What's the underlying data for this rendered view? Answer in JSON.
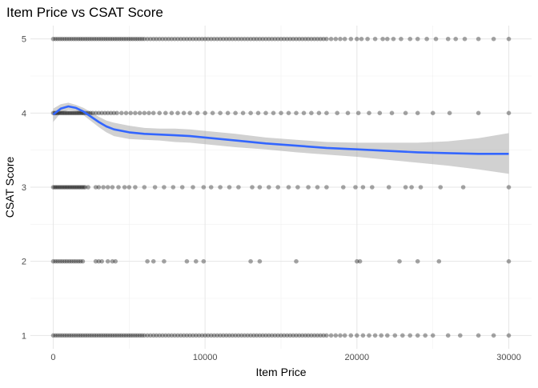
{
  "chart_data": {
    "type": "scatter",
    "title": "Item Price vs CSAT Score",
    "xlabel": "Item Price",
    "ylabel": "CSAT Score",
    "xlim": [
      -1500,
      31500
    ],
    "ylim": [
      0.82,
      5.18
    ],
    "x_ticks": [
      0,
      10000,
      20000,
      30000
    ],
    "y_ticks": [
      1,
      2,
      3,
      4,
      5
    ],
    "grid": true,
    "legend": "none",
    "point_color": "#000000",
    "point_alpha": 0.35,
    "smooth_color": "#3366FF",
    "band_color": "#999999",
    "points": [
      {
        "y": 5,
        "x": [
          0,
          150,
          300,
          450,
          600,
          750,
          900,
          1050,
          1200,
          1350,
          1500,
          1650,
          1800,
          1950,
          2100,
          2250,
          2400,
          2550,
          2700,
          2850,
          3000,
          3150,
          3300,
          3450,
          3600,
          3750,
          3900,
          4050,
          4200,
          4350,
          4500,
          4650,
          4800,
          4950,
          5100,
          5250,
          5400,
          5550,
          5700,
          5850,
          6000,
          6200,
          6400,
          6600,
          6800,
          7000,
          7200,
          7400,
          7600,
          7800,
          8000,
          8200,
          8400,
          8600,
          8800,
          9000,
          9200,
          9400,
          9600,
          9800,
          10000,
          10200,
          10400,
          10600,
          10800,
          11000,
          11200,
          11400,
          11600,
          11800,
          12000,
          12200,
          12400,
          12600,
          12800,
          13000,
          13200,
          13400,
          13600,
          13800,
          14000,
          14200,
          14400,
          14600,
          14800,
          15000,
          15200,
          15400,
          15600,
          15800,
          16000,
          16200,
          16400,
          16600,
          16800,
          17000,
          17200,
          17400,
          17600,
          17800,
          18000,
          18300,
          18600,
          18900,
          19200,
          19600,
          20000,
          20300,
          20700,
          21200,
          21700,
          22000,
          22400,
          22900,
          23500,
          24000,
          24600,
          25200,
          26000,
          26500,
          27100,
          28000,
          29000,
          30000
        ]
      },
      {
        "y": 4,
        "x": [
          0,
          100,
          200,
          300,
          400,
          500,
          600,
          700,
          800,
          900,
          1000,
          1100,
          1200,
          1300,
          1400,
          1500,
          1600,
          1700,
          1800,
          1900,
          2000,
          2150,
          2300,
          2450,
          2600,
          2800,
          3000,
          3200,
          3400,
          3600,
          3800,
          4000,
          4200,
          4500,
          4800,
          5100,
          5400,
          5700,
          6000,
          6300,
          6600,
          7000,
          7400,
          7800,
          8200,
          8600,
          9000,
          9500,
          10000,
          10500,
          11000,
          11500,
          12000,
          12500,
          13000,
          13500,
          14000,
          14500,
          15000,
          15500,
          16000,
          16500,
          17000,
          17500,
          18000,
          18700,
          19400,
          20100,
          20800,
          21500,
          22300,
          23200,
          24000,
          25000,
          26100,
          28000,
          30000
        ]
      },
      {
        "y": 3,
        "x": [
          0,
          100,
          200,
          300,
          400,
          500,
          600,
          700,
          800,
          900,
          1000,
          1100,
          1200,
          1300,
          1400,
          1500,
          1600,
          1700,
          1800,
          1900,
          2000,
          2100,
          2300,
          2800,
          3000,
          3300,
          3600,
          3900,
          4300,
          4700,
          5000,
          5400,
          6000,
          6700,
          7300,
          7900,
          8500,
          9200,
          9900,
          10400,
          11000,
          11600,
          12200,
          13100,
          13600,
          14200,
          14800,
          15500,
          16100,
          16800,
          17400,
          18000,
          19100,
          19900,
          20400,
          21000,
          22100,
          23200,
          23600,
          24200,
          25500,
          27000,
          30000
        ]
      },
      {
        "y": 2,
        "x": [
          0,
          150,
          300,
          450,
          600,
          750,
          900,
          1050,
          1200,
          1350,
          1500,
          1650,
          1800,
          1950,
          2800,
          3000,
          3200,
          3600,
          3900,
          4100,
          6200,
          6600,
          7300,
          8800,
          9400,
          9900,
          13000,
          13600,
          16000,
          20000,
          20200,
          22800,
          24000,
          25400,
          30000
        ]
      },
      {
        "y": 1,
        "x": [
          0,
          150,
          300,
          450,
          600,
          750,
          900,
          1050,
          1200,
          1350,
          1500,
          1650,
          1800,
          1950,
          2100,
          2250,
          2400,
          2550,
          2700,
          2850,
          3000,
          3150,
          3300,
          3450,
          3600,
          3750,
          3900,
          4050,
          4200,
          4350,
          4500,
          4650,
          4800,
          4950,
          5100,
          5250,
          5400,
          5550,
          5700,
          5850,
          6000,
          6200,
          6400,
          6600,
          6800,
          7000,
          7200,
          7400,
          7600,
          7800,
          8000,
          8200,
          8400,
          8600,
          8800,
          9000,
          9200,
          9400,
          9600,
          9800,
          10000,
          10200,
          10400,
          10600,
          10800,
          11000,
          11200,
          11400,
          11600,
          11800,
          12000,
          12200,
          12400,
          12600,
          12800,
          13000,
          13200,
          13400,
          13600,
          13800,
          14000,
          14200,
          14400,
          14600,
          14800,
          15000,
          15200,
          15400,
          15600,
          15800,
          16000,
          16200,
          16400,
          16600,
          16800,
          17000,
          17200,
          17400,
          17600,
          17800,
          18000,
          18300,
          18600,
          18900,
          19200,
          19600,
          20000,
          20400,
          20800,
          21200,
          21600,
          22000,
          22500,
          23000,
          23500,
          24000,
          24500,
          25000,
          26000,
          26800,
          28000,
          29000,
          30000
        ]
      }
    ],
    "smooth": {
      "x": [
        0,
        500,
        1000,
        1500,
        2000,
        2500,
        3000,
        3500,
        4000,
        5000,
        6000,
        7000,
        8000,
        9000,
        10000,
        12000,
        14000,
        16000,
        18000,
        20000,
        22000,
        24000,
        26000,
        28000,
        30000
      ],
      "y": [
        3.98,
        4.06,
        4.09,
        4.07,
        4.02,
        3.95,
        3.88,
        3.82,
        3.78,
        3.74,
        3.72,
        3.71,
        3.7,
        3.69,
        3.67,
        3.63,
        3.59,
        3.56,
        3.53,
        3.51,
        3.49,
        3.47,
        3.46,
        3.45,
        3.45
      ],
      "lower": [
        3.88,
        4.0,
        4.04,
        4.03,
        3.97,
        3.89,
        3.81,
        3.74,
        3.69,
        3.65,
        3.64,
        3.63,
        3.61,
        3.6,
        3.58,
        3.54,
        3.51,
        3.47,
        3.44,
        3.41,
        3.37,
        3.33,
        3.29,
        3.24,
        3.18
      ],
      "upper": [
        4.06,
        4.12,
        4.14,
        4.11,
        4.07,
        4.01,
        3.95,
        3.9,
        3.87,
        3.83,
        3.8,
        3.79,
        3.79,
        3.78,
        3.76,
        3.72,
        3.67,
        3.64,
        3.61,
        3.6,
        3.6,
        3.6,
        3.62,
        3.66,
        3.73
      ]
    }
  }
}
